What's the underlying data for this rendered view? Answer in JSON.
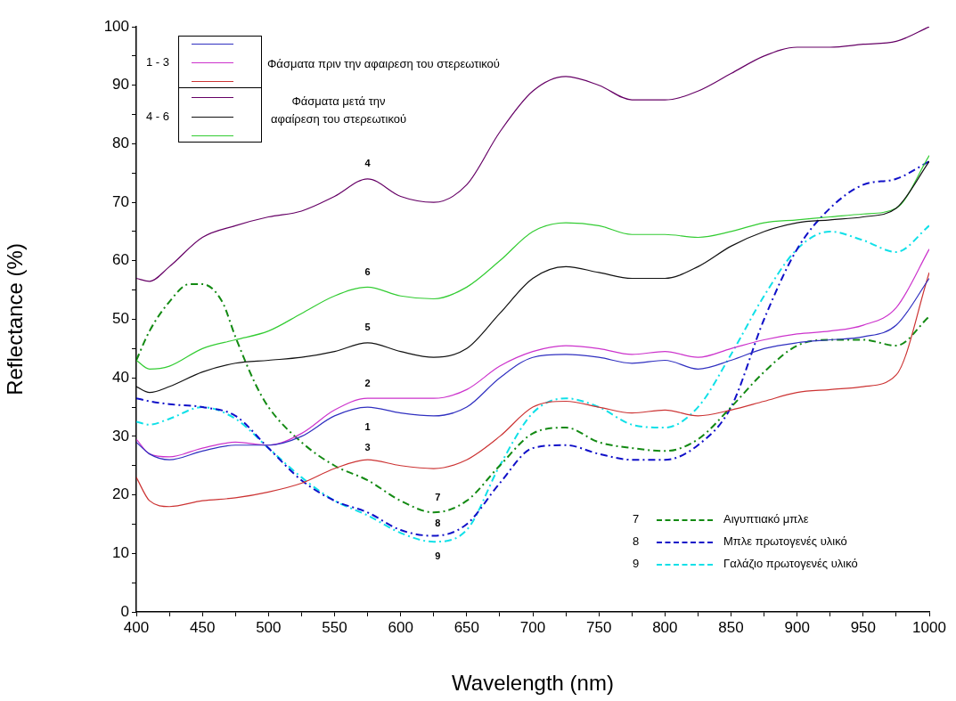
{
  "chart_data": {
    "type": "line",
    "xlabel": "Wavelength (nm)",
    "ylabel": "Reflectance (%)",
    "xlim": [
      400,
      1000
    ],
    "ylim": [
      0,
      100
    ],
    "xticks": [
      400,
      {
        "value": 425,
        "label": null
      },
      450,
      {
        "value": 475,
        "label": null
      },
      500,
      {
        "value": 525,
        "label": null
      },
      550,
      {
        "value": 575,
        "label": null
      },
      600,
      {
        "value": 625,
        "label": null
      },
      650,
      {
        "value": 675,
        "label": null
      },
      700,
      {
        "value": 725,
        "label": null
      },
      750,
      {
        "value": 775,
        "label": null
      },
      800,
      {
        "value": 825,
        "label": null
      },
      850,
      {
        "value": 875,
        "label": null
      },
      900,
      {
        "value": 925,
        "label": null
      },
      950,
      {
        "value": 975,
        "label": null
      },
      1000
    ],
    "yticks": [
      0,
      {
        "value": 5,
        "label": null
      },
      10,
      {
        "value": 15,
        "label": null
      },
      20,
      {
        "value": 25,
        "label": null
      },
      30,
      {
        "value": 35,
        "label": null
      },
      40,
      {
        "value": 45,
        "label": null
      },
      50,
      {
        "value": 55,
        "label": null
      },
      60,
      {
        "value": 65,
        "label": null
      },
      70,
      {
        "value": 75,
        "label": null
      },
      80,
      {
        "value": 85,
        "label": null
      },
      90,
      {
        "value": 95,
        "label": null
      },
      100
    ],
    "legend": "bottom right",
    "marker": "none",
    "x": [
      400,
      410,
      425,
      450,
      475,
      500,
      525,
      550,
      575,
      600,
      625,
      650,
      675,
      700,
      725,
      750,
      775,
      800,
      825,
      850,
      875,
      900,
      925,
      950,
      975,
      1000
    ],
    "series": [
      {
        "color": "#3030c0",
        "line_style": "solid",
        "values": [
          29,
          27,
          26,
          27.5,
          28.5,
          28.5,
          30,
          33.5,
          35,
          34,
          33.5,
          35,
          40,
          43.5,
          44,
          43.5,
          42.5,
          43,
          41.5,
          43,
          45,
          46,
          46.5,
          47,
          49,
          57
        ]
      },
      {
        "color": "#cc33cc",
        "line_style": "solid",
        "values": [
          29.5,
          27,
          26.5,
          28,
          29,
          28.5,
          30.5,
          34.5,
          36.5,
          36.5,
          36.5,
          38,
          42,
          44.5,
          45.5,
          45,
          44,
          44.5,
          43.5,
          45,
          46.5,
          47.5,
          48,
          49,
          52,
          62
        ]
      },
      {
        "color": "#cc3333",
        "line_style": "solid",
        "values": [
          23,
          19,
          18,
          19,
          19.5,
          20.5,
          22,
          24.5,
          26,
          25,
          24.5,
          26,
          30,
          35,
          36,
          35,
          34,
          34.5,
          33.5,
          34.5,
          36,
          37.5,
          38,
          38.5,
          40.5,
          58
        ]
      },
      {
        "color": "#660066",
        "line_style": "solid",
        "values": [
          57,
          56.5,
          59,
          64,
          66,
          67.5,
          68.5,
          71,
          74,
          71,
          70,
          73,
          82,
          89,
          91.5,
          90,
          87.5,
          87.5,
          89,
          92,
          95,
          96.5,
          96.5,
          97,
          97.5,
          100
        ]
      },
      {
        "color": "#111111",
        "line_style": "solid",
        "values": [
          38.5,
          37.5,
          38.5,
          41,
          42.5,
          43,
          43.5,
          44.5,
          46,
          44.5,
          43.5,
          45,
          51,
          57,
          59,
          58,
          57,
          57,
          59,
          62.5,
          65,
          66.5,
          67,
          67.5,
          69,
          77
        ]
      },
      {
        "color": "#33cc33",
        "line_style": "solid",
        "values": [
          43,
          41.5,
          42,
          45,
          46.5,
          48,
          51,
          54,
          55.5,
          54,
          53.5,
          55.5,
          60,
          65,
          66.5,
          66,
          64.5,
          64.5,
          64,
          65,
          66.5,
          67,
          67.5,
          68,
          69,
          78
        ]
      },
      {
        "name": "Αιγυπτιακό μπλε",
        "color": "#138a13",
        "line_style": "dashed",
        "x": [
          400,
          410,
          425,
          440,
          450,
          465,
          475,
          490,
          500,
          525,
          550,
          575,
          600,
          625,
          650,
          675,
          700,
          725,
          750,
          775,
          800,
          825,
          850,
          875,
          900,
          925,
          950,
          975,
          1000
        ],
        "values": [
          43,
          48,
          53,
          56,
          56,
          53,
          47,
          39,
          35,
          29,
          25,
          22.5,
          19,
          17,
          19,
          25,
          30.5,
          31.5,
          29,
          28,
          27.5,
          29.5,
          35,
          41,
          45.5,
          46.5,
          46.5,
          45.5,
          50.5
        ]
      },
      {
        "name": "Μπλε πρωτογενές υλικό",
        "color": "#1010c8",
        "line_style": "dashed",
        "values": [
          36.5,
          36,
          35.5,
          35,
          33.5,
          28,
          22.5,
          19,
          17,
          14,
          13,
          15,
          22,
          28,
          28.5,
          27,
          26,
          26,
          28.5,
          35,
          50,
          62,
          69,
          73,
          74,
          77
        ]
      },
      {
        "name": "Γαλάζιο πρωτογενές υλικό",
        "color": "#10e0e8",
        "line_style": "dashed",
        "values": [
          32.5,
          32,
          33,
          35,
          33,
          28,
          23,
          19,
          16.5,
          13.5,
          12,
          14,
          25,
          34,
          36.5,
          35,
          32,
          31.5,
          35,
          44,
          54,
          62,
          65,
          63.5,
          61.5,
          66
        ]
      }
    ],
    "annotations": [
      "1 - 3",
      "Φάσματα πριν την αφαιρεση του στερεωτικού",
      "4 - 6",
      "Φάσματα μετά την αφαίρεση του στερεωτικού",
      "7",
      "8",
      "9",
      "4",
      "6",
      "5",
      "2",
      "1",
      "3",
      "7",
      "8",
      "9"
    ]
  }
}
